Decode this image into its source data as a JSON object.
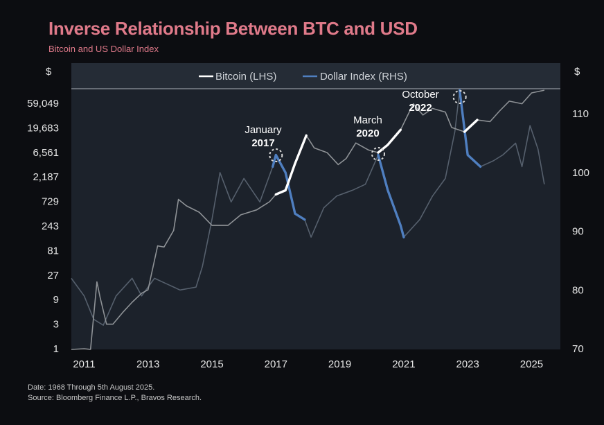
{
  "title": "Inverse Relationship Between BTC and USD",
  "subtitle": "Bitcoin and US Dollar Index",
  "footnote": {
    "line1": "Date: 1968 Through 5th August 2025.",
    "line2": "Source: Bloomberg Finance L.P., Bravos Research."
  },
  "colors": {
    "bitcoin": "#ffffff",
    "dollar": "#4f7fc0",
    "plot_bg": "#1c222b",
    "title": "#e07a8a"
  },
  "chart_data": {
    "type": "line",
    "y_left_unit": "$",
    "y_right_unit": "$",
    "y_left_scale": "log3",
    "y_left_ticks": [
      "1",
      "3",
      "9",
      "27",
      "81",
      "243",
      "729",
      "2,187",
      "6,561",
      "19,683",
      "59,049"
    ],
    "y_right_ticks": [
      "70",
      "80",
      "90",
      "100",
      "110"
    ],
    "x_ticks": [
      "2011",
      "2013",
      "2015",
      "2017",
      "2019",
      "2021",
      "2023",
      "2025"
    ],
    "ylim_left": [
      1,
      120000
    ],
    "ylim_right": [
      70,
      114
    ],
    "legend": {
      "position": "top-center",
      "entries": [
        "Bitcoin (LHS)",
        "Dollar Index (RHS)"
      ]
    },
    "series": [
      {
        "name": "Bitcoin (LHS)",
        "axis": "left",
        "x": [
          2010.6,
          2011.0,
          2011.2,
          2011.4,
          2011.5,
          2011.7,
          2011.9,
          2012.2,
          2012.5,
          2012.8,
          2013.0,
          2013.3,
          2013.5,
          2013.8,
          2013.95,
          2014.2,
          2014.6,
          2015.0,
          2015.5,
          2015.9,
          2016.4,
          2016.8,
          2017.0,
          2017.3,
          2017.6,
          2017.95,
          2018.2,
          2018.6,
          2018.95,
          2019.2,
          2019.5,
          2019.9,
          2020.2,
          2020.5,
          2020.9,
          2021.3,
          2021.6,
          2021.9,
          2022.3,
          2022.5,
          2022.9,
          2023.3,
          2023.7,
          2024.0,
          2024.3,
          2024.7,
          2025.0,
          2025.4
        ],
        "values": [
          0.07,
          1,
          0.8,
          20,
          10,
          3,
          3,
          5,
          8,
          12,
          14,
          100,
          95,
          200,
          800,
          600,
          450,
          250,
          250,
          400,
          500,
          720,
          1000,
          1200,
          4000,
          14000,
          8000,
          6500,
          3800,
          5000,
          10000,
          7300,
          6500,
          9200,
          18000,
          58000,
          35000,
          47000,
          40000,
          20000,
          16500,
          28000,
          26000,
          42000,
          65000,
          58000,
          94000,
          106000
        ]
      },
      {
        "name": "Dollar Index (RHS)",
        "axis": "right",
        "x": [
          2010.6,
          2011.0,
          2011.3,
          2011.6,
          2012.0,
          2012.5,
          2012.8,
          2013.2,
          2013.6,
          2014.0,
          2014.5,
          2014.7,
          2015.0,
          2015.25,
          2015.6,
          2016.0,
          2016.5,
          2016.9,
          2017.0,
          2017.3,
          2017.6,
          2017.9,
          2018.1,
          2018.5,
          2018.9,
          2019.4,
          2019.8,
          2020.2,
          2020.5,
          2020.9,
          2021.0,
          2021.5,
          2021.9,
          2022.3,
          2022.6,
          2022.75,
          2023.0,
          2023.4,
          2023.8,
          2024.1,
          2024.5,
          2024.7,
          2024.95,
          2025.2,
          2025.4
        ],
        "values": [
          82,
          79,
          75,
          74,
          79,
          82,
          79,
          82,
          81,
          80,
          80.5,
          84,
          92,
          100,
          95,
          99,
          95,
          101,
          103,
          100,
          93,
          92,
          89,
          94,
          96,
          97,
          98,
          103,
          97,
          91,
          89,
          92,
          96,
          99,
          107,
          114,
          103,
          101,
          102,
          103,
          105,
          101,
          108,
          104,
          98
        ]
      }
    ],
    "annotations": [
      {
        "line1": "January",
        "line2": "2017",
        "x": 2017.0
      },
      {
        "line1": "March",
        "line2": "2020",
        "x": 2020.2
      },
      {
        "line1": "October",
        "line2": "2022",
        "x": 2022.75
      }
    ]
  }
}
